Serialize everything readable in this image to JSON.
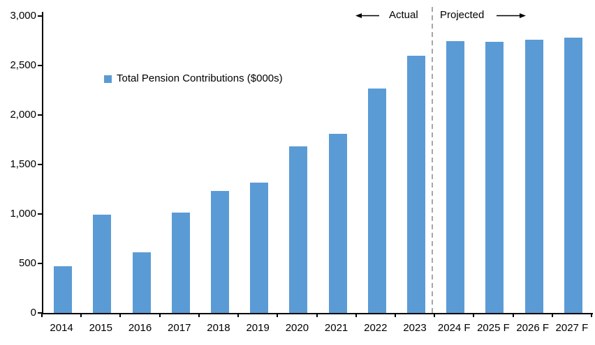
{
  "chart_data": {
    "type": "bar",
    "title": "",
    "legend_label": "Total Pension Contributions ($000s)",
    "categories": [
      "2014",
      "2015",
      "2016",
      "2017",
      "2018",
      "2019",
      "2020",
      "2021",
      "2022",
      "2023",
      "2024 F",
      "2025 F",
      "2026 F",
      "2027 F"
    ],
    "values": [
      470,
      990,
      610,
      1015,
      1230,
      1315,
      1680,
      1810,
      2270,
      2600,
      2745,
      2740,
      2760,
      2785
    ],
    "xlabel": "",
    "ylabel": "",
    "ylim": [
      0,
      3000
    ],
    "ytick_interval": 500,
    "ytick_labels": [
      "0",
      "500",
      "1,000",
      "1,500",
      "2,000",
      "2,500",
      "3,000"
    ],
    "grid": false,
    "legend_position": "inside-upper-left",
    "bar_color": "#5B9BD5",
    "divider_color": "#A6A6A6",
    "axis_color": "#000000",
    "annotations": {
      "actual": "Actual",
      "projected": "Projected",
      "divider_between": [
        "2023",
        "2024 F"
      ]
    }
  }
}
